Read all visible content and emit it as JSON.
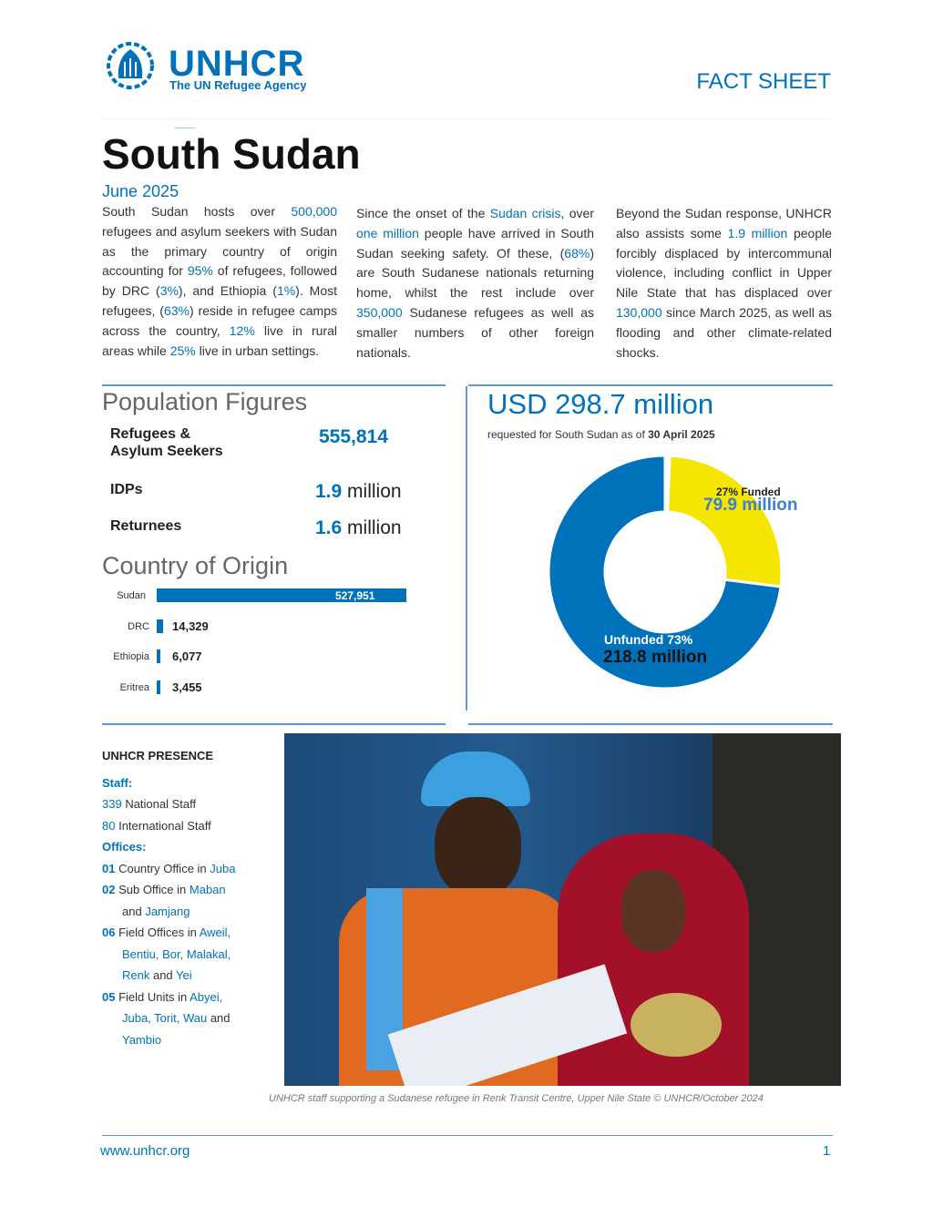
{
  "header": {
    "logo_name": "UNHCR",
    "logo_tagline": "The UN Refugee Agency",
    "doc_type": "FACT SHEET"
  },
  "title": "South Sudan",
  "date": "June 2025",
  "intro": [
    [
      {
        "t": "South Sudan hosts over "
      },
      {
        "t": "500,000",
        "hl": true
      },
      {
        "t": " refugees and asylum seekers with Sudan as the primary country of origin accounting for "
      },
      {
        "t": "95%",
        "hl": true
      },
      {
        "t": " of refugees, followed by DRC ("
      },
      {
        "t": "3%",
        "hl": true
      },
      {
        "t": "), and Ethiopia ("
      },
      {
        "t": "1%",
        "hl": true
      },
      {
        "t": "). Most refugees, ("
      },
      {
        "t": "63%",
        "hl": true
      },
      {
        "t": ") reside in refugee camps across the country, "
      },
      {
        "t": "12%",
        "hl": true
      },
      {
        "t": " live in rural areas while "
      },
      {
        "t": "25%",
        "hl": true
      },
      {
        "t": " live in urban settings."
      }
    ],
    [
      {
        "t": "Since the onset of the "
      },
      {
        "t": "Sudan crisis",
        "hl": true
      },
      {
        "t": ", over "
      },
      {
        "t": "one million",
        "hl": true
      },
      {
        "t": " people have arrived in South Sudan seeking safety. Of these, ("
      },
      {
        "t": "68%",
        "hl": true
      },
      {
        "t": ") are South Sudanese nationals returning home, whilst the rest include over "
      },
      {
        "t": "350,000",
        "hl": true
      },
      {
        "t": " Sudanese refugees as well as smaller numbers of other foreign nationals."
      }
    ],
    [
      {
        "t": "Beyond the Sudan response, UNHCR also assists some "
      },
      {
        "t": "1.9 million",
        "hl": true
      },
      {
        "t": " people forcibly displaced by intercommunal violence, including conflict in Upper Nile State that has displaced over "
      },
      {
        "t": "130,000",
        "hl": true
      },
      {
        "t": " since March 2025, as well as flooding and other climate-related shocks."
      }
    ]
  ],
  "population": {
    "heading": "Population Figures",
    "items": [
      {
        "label": "Refugees & Asylum Seekers",
        "value": "555,814",
        "unit": ""
      },
      {
        "label": "IDPs",
        "value": "1.9",
        "unit": "million"
      },
      {
        "label": "Returnees",
        "value": "1.6",
        "unit": "million"
      }
    ]
  },
  "country_of_origin": {
    "heading": "Country of Origin",
    "items": [
      {
        "country": "Sudan",
        "value": 527951,
        "label": "527,951"
      },
      {
        "country": "DRC",
        "value": 14329,
        "label": "14,329"
      },
      {
        "country": "Ethiopia",
        "value": 6077,
        "label": "6,077"
      },
      {
        "country": "Eritrea",
        "value": 3455,
        "label": "3,455"
      }
    ]
  },
  "funding": {
    "headline": "USD 298.7 million",
    "subtitle_prefix": "requested for South Sudan as of ",
    "subtitle_date": "30 April 2025",
    "funded": {
      "label": "27% Funded",
      "amount": "79.9 million",
      "percent": 27,
      "color": "#f5e600"
    },
    "unfunded": {
      "label": "Unfunded 73%",
      "amount": "218.8 million",
      "percent": 73,
      "color": "#0072bc"
    }
  },
  "presence": {
    "heading": "UNHCR PRESENCE",
    "staff_heading": "Staff:",
    "offices_heading": "Offices:",
    "lines": [
      {
        "type": "staff",
        "segs": [
          {
            "t": "339",
            "hl": true
          },
          {
            "t": " National Staff"
          }
        ]
      },
      {
        "type": "staff",
        "segs": [
          {
            "t": "80",
            "hl": true
          },
          {
            "t": " International Staff"
          }
        ]
      },
      {
        "type": "office",
        "segs": [
          {
            "t": "01",
            "hl": true,
            "b": true
          },
          {
            "t": " Country Office in "
          },
          {
            "t": "Juba",
            "hl": true
          }
        ]
      },
      {
        "type": "office",
        "segs": [
          {
            "t": "02",
            "hl": true,
            "b": true
          },
          {
            "t": " Sub Office in "
          },
          {
            "t": "Maban",
            "hl": true
          }
        ]
      },
      {
        "type": "ind",
        "segs": [
          {
            "t": "and "
          },
          {
            "t": "Jamjang",
            "hl": true
          }
        ]
      },
      {
        "type": "office",
        "segs": [
          {
            "t": "06",
            "hl": true,
            "b": true
          },
          {
            "t": " Field Offices in "
          },
          {
            "t": "Aweil,",
            "hl": true
          }
        ]
      },
      {
        "type": "ind",
        "segs": [
          {
            "t": "Bentiu, Bor, Malakal,",
            "hl": true
          }
        ]
      },
      {
        "type": "ind",
        "segs": [
          {
            "t": "Renk",
            "hl": true
          },
          {
            "t": " and "
          },
          {
            "t": "Yei",
            "hl": true
          }
        ]
      },
      {
        "type": "office",
        "segs": [
          {
            "t": "05",
            "hl": true,
            "b": true
          },
          {
            "t": " Field Units in "
          },
          {
            "t": "Abyei,",
            "hl": true
          }
        ]
      },
      {
        "type": "ind",
        "segs": [
          {
            "t": "Juba, Torit, Wau",
            "hl": true
          },
          {
            "t": " and"
          }
        ]
      },
      {
        "type": "ind",
        "segs": [
          {
            "t": "Yambio",
            "hl": true
          }
        ]
      }
    ]
  },
  "photo_caption": "UNHCR staff supporting a Sudanese refugee in Renk Transit Centre, Upper Nile State © UNHCR/October 2024",
  "footer": {
    "url": "www.unhcr.org",
    "page": "1"
  },
  "colors": {
    "accent": "#0072bc",
    "funded": "#f5e600"
  }
}
